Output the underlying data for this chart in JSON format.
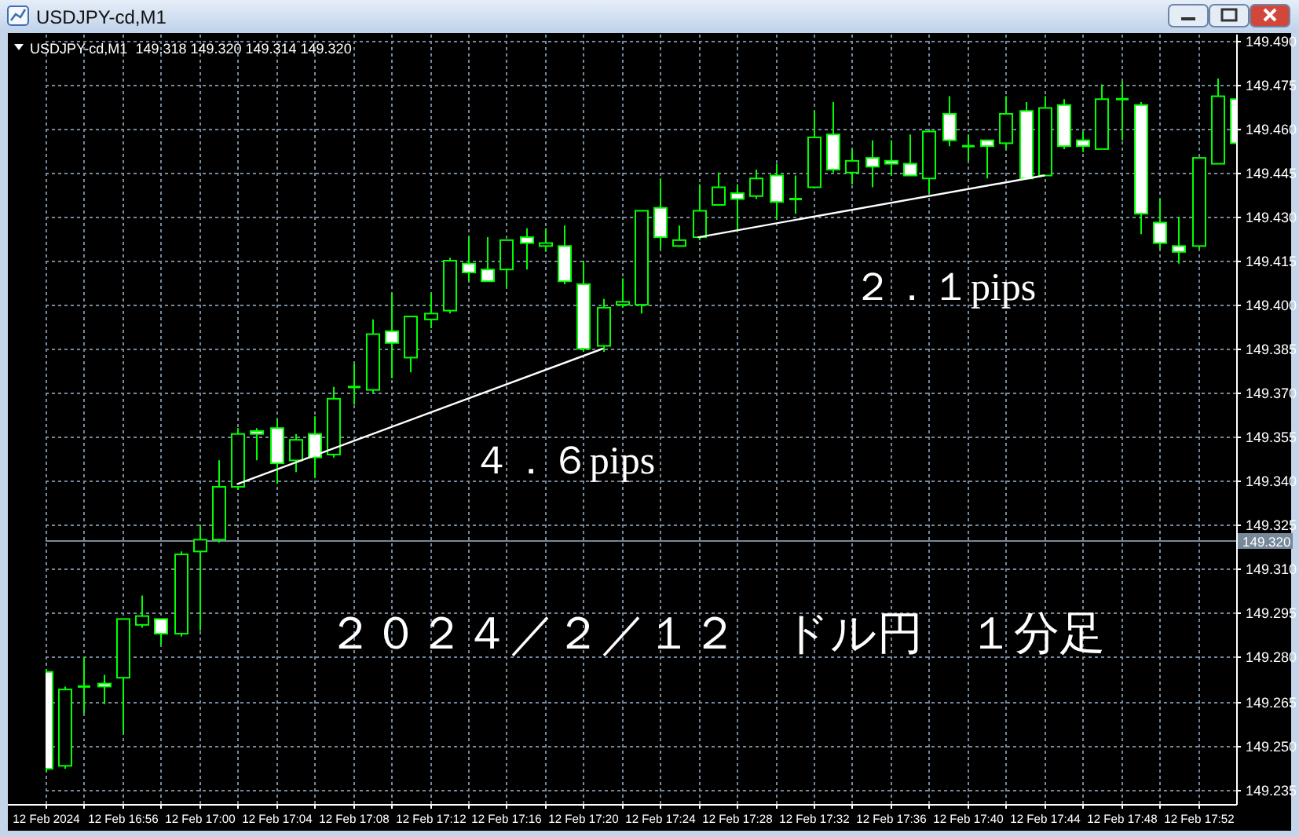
{
  "chart_data": {
    "type": "candlestick",
    "title": "USDJPY-cd,M1",
    "subtitle": "USDJPY-cd,M1  149.318 149.320 149.314 149.320",
    "annotations": [
      "４．６pips",
      "２．１pips",
      "２０２４／２／１２　ドル円　１分足"
    ],
    "x": [
      "2024-02-12T16:52",
      "2024-02-12T16:53",
      "2024-02-12T16:54",
      "2024-02-12T16:55",
      "2024-02-12T16:56",
      "2024-02-12T16:57",
      "2024-02-12T16:58",
      "2024-02-12T16:59",
      "2024-02-12T17:00",
      "2024-02-12T17:01",
      "2024-02-12T17:02",
      "2024-02-12T17:03",
      "2024-02-12T17:04",
      "2024-02-12T17:05",
      "2024-02-12T17:06",
      "2024-02-12T17:07",
      "2024-02-12T17:08",
      "2024-02-12T17:09",
      "2024-02-12T17:10",
      "2024-02-12T17:11",
      "2024-02-12T17:12",
      "2024-02-12T17:13",
      "2024-02-12T17:14",
      "2024-02-12T17:15",
      "2024-02-12T17:16",
      "2024-02-12T17:17",
      "2024-02-12T17:18",
      "2024-02-12T17:19",
      "2024-02-12T17:20",
      "2024-02-12T17:21",
      "2024-02-12T17:22",
      "2024-02-12T17:23",
      "2024-02-12T17:24",
      "2024-02-12T17:25",
      "2024-02-12T17:26",
      "2024-02-12T17:27",
      "2024-02-12T17:28",
      "2024-02-12T17:29",
      "2024-02-12T17:30",
      "2024-02-12T17:31",
      "2024-02-12T17:32",
      "2024-02-12T17:33",
      "2024-02-12T17:34",
      "2024-02-12T17:35",
      "2024-02-12T17:36",
      "2024-02-12T17:37",
      "2024-02-12T17:38",
      "2024-02-12T17:39",
      "2024-02-12T17:40",
      "2024-02-12T17:41",
      "2024-02-12T17:42",
      "2024-02-12T17:43",
      "2024-02-12T17:44",
      "2024-02-12T17:45",
      "2024-02-12T17:46",
      "2024-02-12T17:47",
      "2024-02-12T17:48",
      "2024-02-12T17:49",
      "2024-02-12T17:50",
      "2024-02-12T17:51",
      "2024-02-12T17:52",
      "2024-02-12T17:53",
      "2024-02-12T17:54"
    ],
    "ohlc": [
      [
        149.275,
        149.276,
        149.241,
        149.242
      ],
      [
        149.243,
        149.27,
        149.242,
        149.269
      ],
      [
        149.27,
        149.28,
        149.261,
        149.27
      ],
      [
        149.271,
        149.274,
        149.264,
        149.27
      ],
      [
        149.273,
        149.293,
        149.254,
        149.293
      ],
      [
        149.291,
        149.301,
        149.29,
        149.294
      ],
      [
        149.293,
        149.293,
        149.284,
        149.288
      ],
      [
        149.288,
        149.316,
        149.287,
        149.315
      ],
      [
        149.316,
        149.325,
        149.289,
        149.32
      ],
      [
        149.32,
        149.347,
        149.319,
        149.338
      ],
      [
        149.338,
        149.358,
        149.337,
        149.356
      ],
      [
        149.357,
        149.358,
        149.347,
        149.356
      ],
      [
        149.358,
        149.361,
        149.339,
        149.346
      ],
      [
        149.347,
        149.356,
        149.343,
        149.354
      ],
      [
        149.356,
        149.362,
        149.341,
        149.348
      ],
      [
        149.349,
        149.372,
        149.348,
        149.368
      ],
      [
        149.372,
        149.38,
        149.366,
        149.372
      ],
      [
        149.371,
        149.395,
        149.37,
        149.39
      ],
      [
        149.391,
        149.404,
        149.375,
        149.387
      ],
      [
        149.382,
        149.396,
        149.377,
        149.396
      ],
      [
        149.395,
        149.404,
        149.392,
        149.397
      ],
      [
        149.398,
        149.416,
        149.397,
        149.415
      ],
      [
        149.414,
        149.423,
        149.408,
        149.411
      ],
      [
        149.412,
        149.423,
        149.408,
        149.408
      ],
      [
        149.412,
        149.422,
        149.406,
        149.422
      ],
      [
        149.423,
        149.426,
        149.412,
        149.421
      ],
      [
        149.42,
        149.426,
        149.418,
        149.421
      ],
      [
        149.42,
        149.427,
        149.407,
        149.408
      ],
      [
        149.407,
        149.415,
        149.384,
        149.385
      ],
      [
        149.386,
        149.402,
        149.384,
        149.399
      ],
      [
        149.4,
        149.409,
        149.399,
        149.401
      ],
      [
        149.4,
        149.432,
        149.397,
        149.432
      ],
      [
        149.433,
        149.443,
        149.419,
        149.423
      ],
      [
        149.42,
        149.427,
        149.42,
        149.422
      ],
      [
        149.423,
        149.441,
        149.422,
        149.432
      ],
      [
        149.434,
        149.445,
        149.434,
        149.44
      ],
      [
        149.438,
        149.441,
        149.425,
        149.436
      ],
      [
        149.437,
        149.446,
        149.436,
        149.443
      ],
      [
        149.444,
        149.448,
        149.429,
        149.435
      ],
      [
        149.436,
        149.444,
        149.431,
        149.436
      ],
      [
        149.44,
        149.466,
        149.44,
        149.457
      ],
      [
        149.458,
        149.469,
        149.445,
        149.446
      ],
      [
        149.445,
        149.453,
        149.441,
        149.449
      ],
      [
        149.45,
        149.456,
        149.44,
        149.447
      ],
      [
        149.449,
        149.456,
        149.444,
        149.448
      ],
      [
        149.448,
        149.458,
        149.444,
        149.444
      ],
      [
        149.443,
        149.459,
        149.438,
        149.459
      ],
      [
        149.465,
        149.471,
        149.454,
        149.456
      ],
      [
        149.454,
        149.458,
        149.449,
        149.454
      ],
      [
        149.456,
        149.456,
        149.443,
        149.454
      ],
      [
        149.455,
        149.471,
        149.453,
        149.465
      ],
      [
        149.466,
        149.469,
        149.443,
        149.443
      ],
      [
        149.444,
        149.471,
        149.444,
        149.467
      ],
      [
        149.468,
        149.47,
        149.453,
        149.454
      ],
      [
        149.456,
        149.459,
        149.452,
        149.454
      ],
      [
        149.453,
        149.475,
        149.453,
        149.47
      ],
      [
        149.47,
        149.476,
        149.456,
        149.47
      ],
      [
        149.468,
        149.469,
        149.424,
        149.431
      ],
      [
        149.428,
        149.436,
        149.419,
        149.421
      ],
      [
        149.42,
        149.43,
        149.414,
        149.418
      ],
      [
        149.42,
        149.45,
        149.419,
        149.45
      ],
      [
        149.448,
        149.477,
        149.448,
        149.471
      ],
      [
        149.47,
        149.471,
        149.455,
        149.455
      ]
    ],
    "color": "#00ff00",
    "colors": [
      "#ffffff",
      "#000000",
      "#00ff00",
      "#ffffff",
      "#000000",
      "#000000",
      "#ffffff",
      "#000000",
      "#000000",
      "#000000",
      "#000000",
      "#ffffff",
      "#ffffff",
      "#000000",
      "#ffffff",
      "#000000",
      "#00ff00",
      "#000000",
      "#ffffff",
      "#000000",
      "#000000",
      "#000000",
      "#ffffff",
      "#ffffff",
      "#000000",
      "#ffffff",
      "#000000",
      "#ffffff",
      "#ffffff",
      "#000000",
      "#000000",
      "#000000",
      "#ffffff",
      "#000000",
      "#000000",
      "#000000",
      "#ffffff",
      "#000000",
      "#ffffff",
      "#00ff00",
      "#000000",
      "#ffffff",
      "#000000",
      "#ffffff",
      "#ffffff",
      "#ffffff",
      "#000000",
      "#ffffff",
      "#00ff00",
      "#ffffff",
      "#000000",
      "#ffffff",
      "#000000",
      "#ffffff",
      "#ffffff",
      "#000000",
      "#00ff00",
      "#ffffff",
      "#ffffff",
      "#ffffff",
      "#000000",
      "#000000",
      "#ffffff"
    ],
    "series": [
      {
        "type": "line",
        "x": [
          "2024-02-12T17:02",
          "2024-02-12T17:21"
        ],
        "values": [
          149.339,
          149.385
        ],
        "color": "#ffffff"
      },
      {
        "type": "line",
        "x": [
          "2024-02-12T17:26",
          "2024-02-12T17:44"
        ],
        "values": [
          149.423,
          149.444
        ],
        "color": "#ffffff"
      }
    ],
    "xlim": [
      "2024-02-12T16:52",
      "2024-02-12T17:54"
    ],
    "xticks": [
      {
        "value": "2024-02-12T16:52",
        "label": "12 Feb 2024"
      },
      {
        "value": "2024-02-12T16:54",
        "label": null
      },
      {
        "value": "2024-02-12T16:56",
        "label": "12 Feb 16:56"
      },
      {
        "value": "2024-02-12T16:58",
        "label": null
      },
      {
        "value": "2024-02-12T17:00",
        "label": "12 Feb 17:00"
      },
      {
        "value": "2024-02-12T17:02",
        "label": null
      },
      {
        "value": "2024-02-12T17:04",
        "label": "12 Feb 17:04"
      },
      {
        "value": "2024-02-12T17:06",
        "label": null
      },
      {
        "value": "2024-02-12T17:08",
        "label": "12 Feb 17:08"
      },
      {
        "value": "2024-02-12T17:10",
        "label": null
      },
      {
        "value": "2024-02-12T17:12",
        "label": "12 Feb 17:12"
      },
      {
        "value": "2024-02-12T17:14",
        "label": null
      },
      {
        "value": "2024-02-12T17:16",
        "label": "12 Feb 17:16"
      },
      {
        "value": "2024-02-12T17:18",
        "label": null
      },
      {
        "value": "2024-02-12T17:20",
        "label": "12 Feb 17:20"
      },
      {
        "value": "2024-02-12T17:22",
        "label": null
      },
      {
        "value": "2024-02-12T17:24",
        "label": "12 Feb 17:24"
      },
      {
        "value": "2024-02-12T17:26",
        "label": null
      },
      {
        "value": "2024-02-12T17:28",
        "label": "12 Feb 17:28"
      },
      {
        "value": "2024-02-12T17:30",
        "label": null
      },
      {
        "value": "2024-02-12T17:32",
        "label": "12 Feb 17:32"
      },
      {
        "value": "2024-02-12T17:34",
        "label": null
      },
      {
        "value": "2024-02-12T17:36",
        "label": "12 Feb 17:36"
      },
      {
        "value": "2024-02-12T17:38",
        "label": null
      },
      {
        "value": "2024-02-12T17:40",
        "label": "12 Feb 17:40"
      },
      {
        "value": "2024-02-12T17:42",
        "label": null
      },
      {
        "value": "2024-02-12T17:44",
        "label": "12 Feb 17:44"
      },
      {
        "value": "2024-02-12T17:46",
        "label": null
      },
      {
        "value": "2024-02-12T17:48",
        "label": "12 Feb 17:48"
      },
      {
        "value": "2024-02-12T17:50",
        "label": null
      },
      {
        "value": "2024-02-12T17:52",
        "label": "12 Feb 17:52"
      }
    ],
    "ylim": [
      149.23,
      149.492
    ],
    "yticks": [
      {
        "value": 149.49,
        "label": "149.490"
      },
      149.475,
      {
        "value": 149.46,
        "label": "149.460"
      },
      149.445,
      {
        "value": 149.43,
        "label": "149.430"
      },
      149.415,
      {
        "value": 149.4,
        "label": "149.400"
      },
      149.385,
      {
        "value": 149.37,
        "label": "149.370"
      },
      149.355,
      {
        "value": 149.34,
        "label": "149.340"
      },
      149.325,
      {
        "value": 149.31,
        "label": "149.310"
      },
      149.295,
      {
        "value": 149.28,
        "label": "149.280"
      },
      149.265,
      {
        "value": 149.25,
        "label": "149.250"
      },
      149.235
    ],
    "ref_lines": [
      {
        "axis": "y",
        "value": 149.32,
        "label": "149.320",
        "color": "#778899"
      }
    ],
    "grid": true
  }
}
